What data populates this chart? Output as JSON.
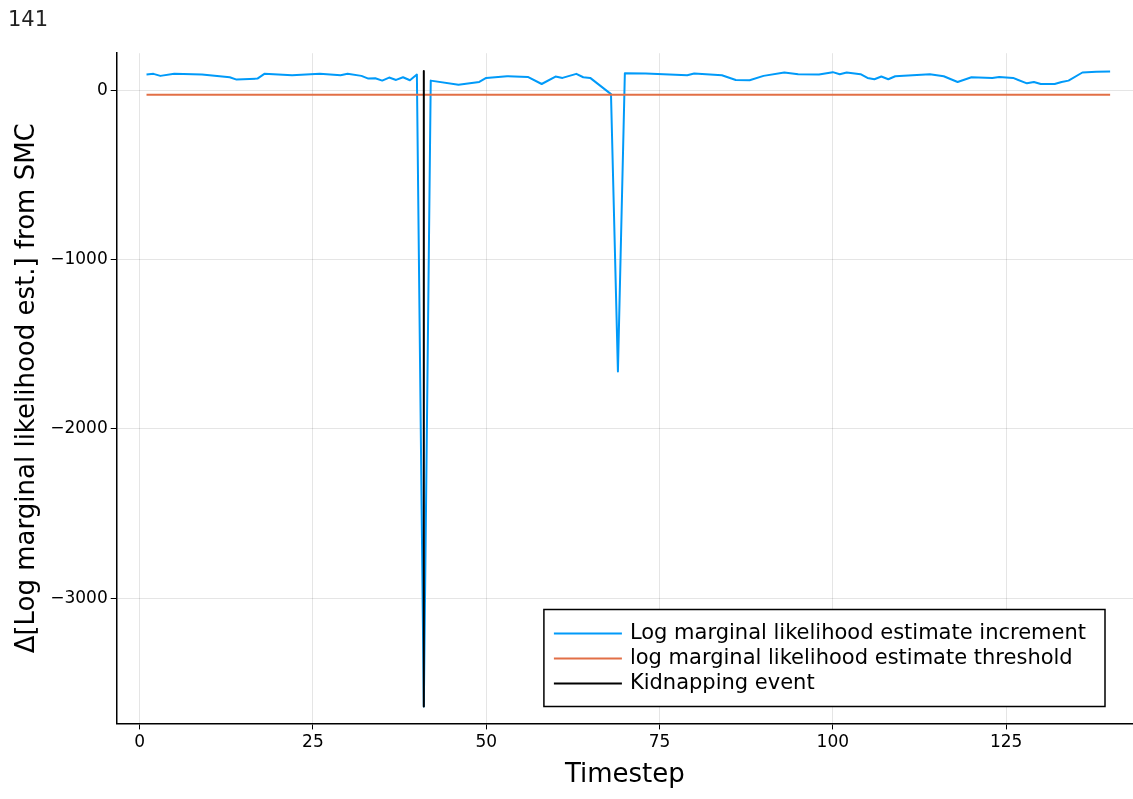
{
  "chart_data": {
    "type": "line",
    "title": "141",
    "xlabel": "Timestep",
    "ylabel": "Δ[Log marginal likelihood est.] from SMC",
    "xlim": [
      -3.3,
      143.3
    ],
    "xticks": [
      0,
      25,
      50,
      75,
      100,
      125
    ],
    "ylim": [
      -3740,
      220
    ],
    "yticks": [
      {
        "value": 0,
        "label": "0"
      },
      {
        "value": -1000,
        "label": "−1000"
      },
      {
        "value": -2000,
        "label": "−2000"
      },
      {
        "value": -3000,
        "label": "−3000"
      }
    ],
    "grid": true,
    "legend": "bottom right",
    "marker": "none",
    "line_style": "solid",
    "series": [
      {
        "name": "Log marginal likelihood estimate increment",
        "color": "#009af9",
        "x": [
          1,
          2,
          3,
          5,
          9,
          13,
          14,
          17,
          18,
          22,
          26,
          29,
          30,
          32,
          33,
          34,
          35,
          36,
          37,
          38,
          39,
          40,
          41,
          42,
          46,
          49,
          50,
          53,
          56,
          58,
          60,
          61,
          63,
          64,
          65,
          68,
          69,
          70,
          73,
          79,
          80,
          84,
          86,
          88,
          90,
          93,
          95,
          98,
          100,
          101,
          102,
          104,
          105,
          106,
          107,
          108,
          109,
          114,
          116,
          118,
          120,
          123,
          124,
          126,
          128,
          129,
          130,
          132,
          133,
          134,
          136,
          138,
          140
        ],
        "values": [
          94,
          98,
          86,
          98,
          94,
          78,
          64,
          70,
          98,
          90,
          98,
          90,
          98,
          86,
          70,
          72,
          58,
          76,
          62,
          78,
          60,
          94,
          -3640,
          58,
          34,
          50,
          74,
          84,
          80,
          38,
          82,
          74,
          98,
          78,
          74,
          -22,
          -1660,
          102,
          100,
          90,
          100,
          90,
          62,
          60,
          86,
          106,
          96,
          94,
          108,
          96,
          106,
          96,
          74,
          66,
          82,
          66,
          84,
          96,
          84,
          50,
          78,
          74,
          80,
          74,
          42,
          50,
          38,
          38,
          50,
          58,
          106,
          110,
          112
        ]
      },
      {
        "name": "log marginal likelihood estimate threshold",
        "color": "#e26f46",
        "x": [
          1,
          140
        ],
        "values": [
          -25,
          -25
        ]
      },
      {
        "name": "Kidnapping event",
        "color": "#000000",
        "x": [
          41,
          41
        ],
        "values": [
          115,
          -3640
        ]
      }
    ]
  }
}
